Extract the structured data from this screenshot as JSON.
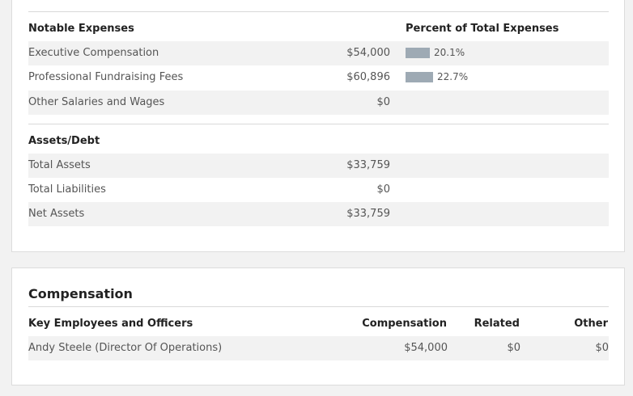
{
  "expenses": {
    "header": "Notable Expenses",
    "percent_header": "Percent of Total Expenses",
    "rows": [
      {
        "label": "Executive Compensation",
        "amount": "$54,000",
        "percent_label": "20.1%",
        "percent": 20.1
      },
      {
        "label": "Professional Fundraising Fees",
        "amount": "$60,896",
        "percent_label": "22.7%",
        "percent": 22.7
      },
      {
        "label": "Other Salaries and Wages",
        "amount": "$0"
      }
    ]
  },
  "assets": {
    "header": "Assets/Debt",
    "rows": [
      {
        "label": "Total Assets",
        "amount": "$33,759"
      },
      {
        "label": "Total Liabilities",
        "amount": "$0"
      },
      {
        "label": "Net Assets",
        "amount": "$33,759"
      }
    ]
  },
  "compensation": {
    "title": "Compensation",
    "columns": {
      "name": "Key Employees and Officers",
      "compensation": "Compensation",
      "related": "Related",
      "other": "Other"
    },
    "rows": [
      {
        "name": "Andy Steele (Director Of Operations)",
        "compensation": "$54,000",
        "related": "$0",
        "other": "$0"
      }
    ]
  },
  "colors": {
    "bar": "#9eaab4",
    "row_shade": "#f2f2f2"
  }
}
